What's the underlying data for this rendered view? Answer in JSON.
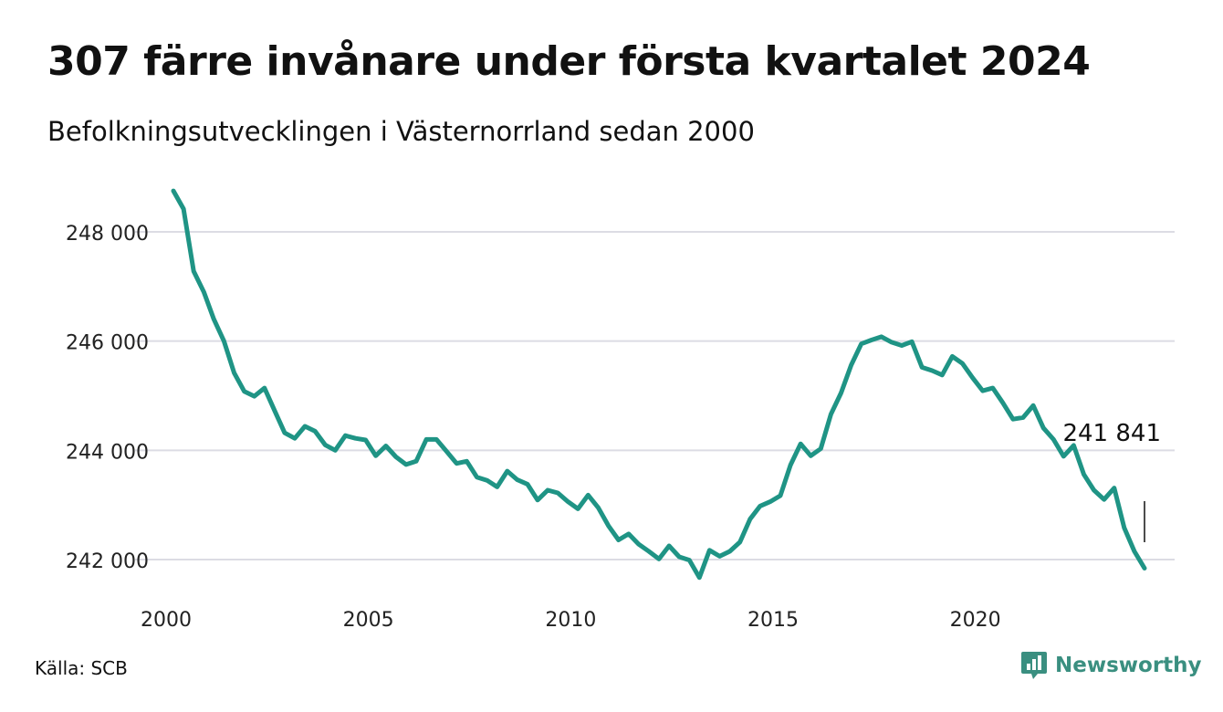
{
  "title": "307 färre invånare under första kvartalet 2024",
  "subtitle": "Befolkningsutvecklingen i Västernorrland sedan 2000",
  "source": "Källa: SCB",
  "brand": {
    "name": "Newsworthy",
    "icon": "newsworthy-logo-icon",
    "color": "#3a8f80"
  },
  "chart_data": {
    "type": "line",
    "title": "307 färre invånare under första kvartalet 2024",
    "subtitle": "Befolkningsutvecklingen i Västernorrland sedan 2000",
    "xlabel": "",
    "ylabel": "",
    "x_ticks": [
      "2000",
      "2005",
      "2010",
      "2015",
      "2020"
    ],
    "y_ticks": [
      "242 000",
      "244 000",
      "246 000",
      "248 000"
    ],
    "xlim": [
      2000,
      2024.9
    ],
    "ylim": [
      241500,
      248950
    ],
    "grid": true,
    "line_color": "#1f9485",
    "annotation": {
      "label": "241 841",
      "x": 2024,
      "y": 241841
    },
    "series": [
      {
        "x": [
          2000.0,
          2000.25,
          2000.5,
          2000.75,
          2001.0,
          2001.25,
          2001.5,
          2001.75,
          2002.0,
          2002.25,
          2002.5,
          2002.75,
          2003.0,
          2003.25,
          2003.5,
          2003.75,
          2004.0,
          2004.25,
          2004.5,
          2004.75,
          2005.0,
          2005.25,
          2005.5,
          2005.75,
          2006.0,
          2006.25,
          2006.5,
          2006.75,
          2007.0,
          2007.25,
          2007.5,
          2007.75,
          2008.0,
          2008.25,
          2008.5,
          2008.75,
          2009.0,
          2009.25,
          2009.5,
          2009.75,
          2010.0,
          2010.25,
          2010.5,
          2010.75,
          2011.0,
          2011.25,
          2011.5,
          2011.75,
          2012.0,
          2012.25,
          2012.5,
          2012.75,
          2013.0,
          2013.25,
          2013.5,
          2013.75,
          2014.0,
          2014.25,
          2014.5,
          2014.75,
          2015.0,
          2015.25,
          2015.5,
          2015.75,
          2016.0,
          2016.25,
          2016.5,
          2016.75,
          2017.0,
          2017.25,
          2017.5,
          2017.75,
          2018.0,
          2018.25,
          2018.5,
          2018.75,
          2019.0,
          2019.25,
          2019.5,
          2019.75,
          2020.0,
          2020.25,
          2020.5,
          2020.75,
          2021.0,
          2021.25,
          2021.5,
          2021.75,
          2022.0,
          2022.25,
          2022.5,
          2022.75,
          2023.0,
          2023.25,
          2023.5,
          2023.75,
          2024.0
        ],
        "y": [
          248750,
          248420,
          247280,
          246900,
          246400,
          246000,
          245420,
          245080,
          244990,
          245140,
          244730,
          244320,
          244220,
          244440,
          244350,
          244100,
          244000,
          244270,
          244220,
          244190,
          243900,
          244080,
          243880,
          243740,
          243800,
          244200,
          244200,
          243980,
          243760,
          243800,
          243510,
          243450,
          243330,
          243620,
          243460,
          243380,
          243090,
          243270,
          243220,
          243060,
          242930,
          243180,
          242950,
          242620,
          242360,
          242470,
          242280,
          242150,
          242010,
          242250,
          242050,
          241990,
          241670,
          242170,
          242060,
          242150,
          242320,
          242740,
          242980,
          243060,
          243170,
          243730,
          244120,
          243900,
          244030,
          244660,
          245050,
          245560,
          245950,
          246020,
          246080,
          245980,
          245920,
          245990,
          245520,
          245460,
          245380,
          245720,
          245590,
          245330,
          245090,
          245140,
          244870,
          244570,
          244600,
          244820,
          244410,
          244200,
          243890,
          244090,
          243560,
          243270,
          243100,
          243310,
          242580,
          242150,
          241841
        ]
      }
    ]
  }
}
